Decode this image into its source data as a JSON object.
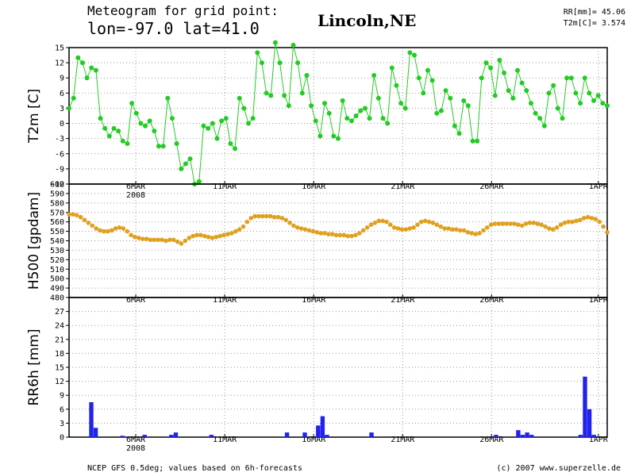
{
  "header": {
    "title": "Meteogram for grid point:",
    "coords": "lon=-97.0 lat=41.0",
    "location": "Lincoln,NE"
  },
  "stats": {
    "rr": "RR[mm]= 45.06",
    "t2m": "T2m[C]= 3.574"
  },
  "footer": {
    "source": "NCEP GFS 0.5deg; values based on 6h-forecasts",
    "credit": "(c) 2007 www.superzelle.de"
  },
  "colors": {
    "t2m": "#22cc22",
    "h500": "#e0a020",
    "rr": "#2222ee"
  },
  "chart_data": [
    {
      "type": "line",
      "ylabel": "T2m [C]",
      "ylim": [
        -12,
        15
      ],
      "yticks": [
        -12,
        -9,
        -6,
        -3,
        0,
        3,
        6,
        9,
        12,
        15
      ],
      "x_start": "2008-03-02T06:00",
      "x_step_hours": 6,
      "date_ticks": [
        "6MAR",
        "11MAR",
        "16MAR",
        "21MAR",
        "26MAR",
        "1APR"
      ],
      "year_label": "2008",
      "grid": true,
      "values": [
        3,
        5,
        13,
        12,
        9,
        11,
        10.5,
        1,
        -1,
        -2.5,
        -1,
        -1.5,
        -3.5,
        -4,
        4,
        2,
        0,
        -0.5,
        0.5,
        -1.5,
        -4.5,
        -4.5,
        5,
        1,
        -4,
        -9,
        -8,
        -7,
        -12,
        -11.5,
        -0.5,
        -1,
        0,
        -3,
        0.5,
        1,
        -4,
        -5,
        5,
        3,
        0,
        1,
        14,
        12,
        6,
        5.5,
        16,
        12,
        5.5,
        3.5,
        15.5,
        12,
        6,
        9.5,
        3.5,
        0.5,
        -2.5,
        4,
        2,
        -2.5,
        -3,
        4.5,
        1,
        0.5,
        1.5,
        2.5,
        3,
        1,
        9.5,
        5,
        1,
        0,
        11,
        7.5,
        4,
        3,
        14,
        13.5,
        9,
        6,
        10.5,
        8.5,
        2,
        2.5,
        6.5,
        5,
        -0.5,
        -2,
        4.5,
        3.5,
        -3.5,
        -3.5,
        9,
        12,
        11,
        5.5,
        12.5,
        10,
        6.5,
        5,
        10.5,
        8,
        6.5,
        4,
        2,
        1,
        -0.5,
        6,
        7.5,
        3,
        1,
        9,
        9,
        6,
        4,
        9,
        6,
        4.5,
        5.5,
        4,
        3.5
      ]
    },
    {
      "type": "line",
      "ylabel": "H500 [gpdam]",
      "ylim": [
        480,
        600
      ],
      "yticks": [
        480,
        490,
        500,
        510,
        520,
        530,
        540,
        550,
        560,
        570,
        580,
        590,
        600
      ],
      "date_ticks": [
        "6MAR",
        "11MAR",
        "16MAR",
        "21MAR",
        "26MAR",
        "1APR"
      ],
      "grid": true,
      "values": [
        568,
        568,
        567,
        565,
        562,
        559,
        556,
        553,
        551,
        550,
        550,
        551,
        553,
        554,
        553,
        550,
        546,
        544,
        543,
        542,
        542,
        541,
        541,
        541,
        541,
        540,
        541,
        541,
        539,
        537,
        540,
        543,
        545,
        546,
        546,
        545,
        544,
        543,
        544,
        545,
        546,
        547,
        548,
        550,
        552,
        555,
        560,
        564,
        566,
        566,
        566,
        566,
        566,
        565,
        565,
        564,
        562,
        559,
        556,
        554,
        553,
        552,
        551,
        550,
        549,
        548,
        548,
        547,
        547,
        546,
        546,
        546,
        545,
        545,
        546,
        548,
        551,
        554,
        557,
        559,
        561,
        561,
        560,
        557,
        554,
        553,
        552,
        552,
        553,
        554,
        557,
        560,
        561,
        560,
        559,
        557,
        555,
        553,
        553,
        552,
        552,
        551,
        551,
        549,
        548,
        547,
        548,
        551,
        554,
        557,
        558,
        558,
        558,
        558,
        558,
        558,
        557,
        556,
        558,
        559,
        559,
        558,
        557,
        555,
        553,
        552,
        554,
        557,
        559,
        560,
        560,
        561,
        562,
        564,
        565,
        564,
        563,
        560,
        555,
        549
      ]
    },
    {
      "type": "bar",
      "ylabel": "RR6h [mm]",
      "ylim": [
        0,
        30
      ],
      "yticks": [
        0,
        3,
        6,
        9,
        12,
        15,
        18,
        21,
        24,
        27,
        30
      ],
      "date_ticks": [
        "6MAR",
        "11MAR",
        "16MAR",
        "21MAR",
        "26MAR",
        "1APR"
      ],
      "year_label": "2008",
      "grid": true,
      "bars": [
        {
          "x": "2008-03-03T12:00",
          "value": 7.5
        },
        {
          "x": "2008-03-03T18:00",
          "value": 2
        },
        {
          "x": "2008-03-05T06:00",
          "value": 0.3
        },
        {
          "x": "2008-03-06T12:00",
          "value": 0.5
        },
        {
          "x": "2008-03-08T00:00",
          "value": 0.5
        },
        {
          "x": "2008-03-08T06:00",
          "value": 1
        },
        {
          "x": "2008-03-10T06:00",
          "value": 0.5
        },
        {
          "x": "2008-03-14T12:00",
          "value": 1
        },
        {
          "x": "2008-03-15T12:00",
          "value": 1
        },
        {
          "x": "2008-03-16T06:00",
          "value": 2.5
        },
        {
          "x": "2008-03-16T12:00",
          "value": 4.5
        },
        {
          "x": "2008-03-16T18:00",
          "value": 0.5
        },
        {
          "x": "2008-03-19T06:00",
          "value": 1
        },
        {
          "x": "2008-03-26T06:00",
          "value": 0.5
        },
        {
          "x": "2008-03-27T12:00",
          "value": 1.5
        },
        {
          "x": "2008-03-27T18:00",
          "value": 0.5
        },
        {
          "x": "2008-03-28T00:00",
          "value": 1
        },
        {
          "x": "2008-03-28T06:00",
          "value": 0.5
        },
        {
          "x": "2008-03-31T00:00",
          "value": 0.5
        },
        {
          "x": "2008-03-31T06:00",
          "value": 13
        },
        {
          "x": "2008-03-31T12:00",
          "value": 6
        },
        {
          "x": "2008-03-31T18:00",
          "value": 0.5
        }
      ]
    }
  ]
}
